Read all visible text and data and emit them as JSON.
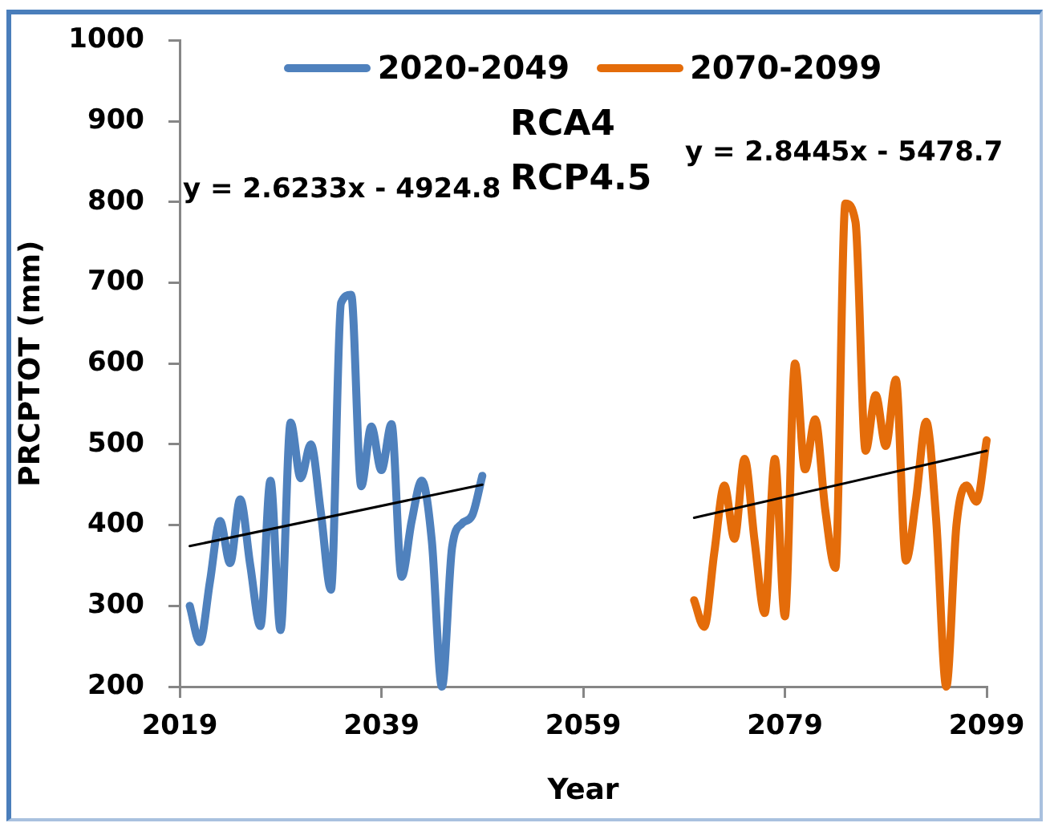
{
  "chart_data": {
    "type": "line",
    "xlabel": "Year",
    "ylabel": "PRCPTOT (mm)",
    "annotations": [
      "RCA4",
      "RCP4.5",
      "y = 2.6233x - 4924.8",
      "y = 2.8445x - 5478.7"
    ],
    "xlim": [
      2019,
      2099
    ],
    "xticks": [
      2019,
      2039,
      2059,
      2079,
      2099
    ],
    "ylim": [
      200,
      1000
    ],
    "yticks": [
      200,
      300,
      400,
      500,
      600,
      700,
      800,
      900,
      1000
    ],
    "grid": false,
    "legend": "top",
    "marker": "none",
    "series": [
      {
        "name": "2020-2049",
        "color": "#4f81bd",
        "x": [
          2020,
          2021,
          2022,
          2023,
          2024,
          2025,
          2026,
          2027,
          2028,
          2029,
          2030,
          2031,
          2032,
          2033,
          2034,
          2035,
          2036,
          2037,
          2038,
          2039,
          2040,
          2041,
          2042,
          2043,
          2044,
          2045,
          2046,
          2047,
          2048,
          2049
        ],
        "values": [
          300,
          255,
          330,
          405,
          353,
          432,
          350,
          275,
          455,
          270,
          527,
          458,
          500,
          415,
          320,
          675,
          685,
          448,
          522,
          468,
          525,
          336,
          405,
          455,
          380,
          200,
          372,
          402,
          412,
          461
        ]
      },
      {
        "name": "2070-2099",
        "color": "#e46c0a",
        "x": [
          2070,
          2071,
          2072,
          2073,
          2074,
          2075,
          2076,
          2077,
          2078,
          2079,
          2080,
          2081,
          2082,
          2083,
          2084,
          2085,
          2086,
          2087,
          2088,
          2089,
          2090,
          2091,
          2092,
          2093,
          2094,
          2095,
          2096,
          2097,
          2098,
          2099
        ],
        "values": [
          307,
          274,
          366,
          449,
          383,
          482,
          380,
          291,
          482,
          287,
          600,
          469,
          531,
          419,
          347,
          798,
          775,
          492,
          561,
          498,
          580,
          356,
          432,
          528,
          406,
          200,
          399,
          449,
          429,
          505
        ]
      },
      {
        "type": "line",
        "color": "#000000",
        "x": [
          2020,
          2049
        ],
        "values": [
          374,
          450
        ]
      },
      {
        "type": "line",
        "color": "#000000",
        "x": [
          2070,
          2099
        ],
        "values": [
          409,
          492
        ]
      }
    ]
  }
}
